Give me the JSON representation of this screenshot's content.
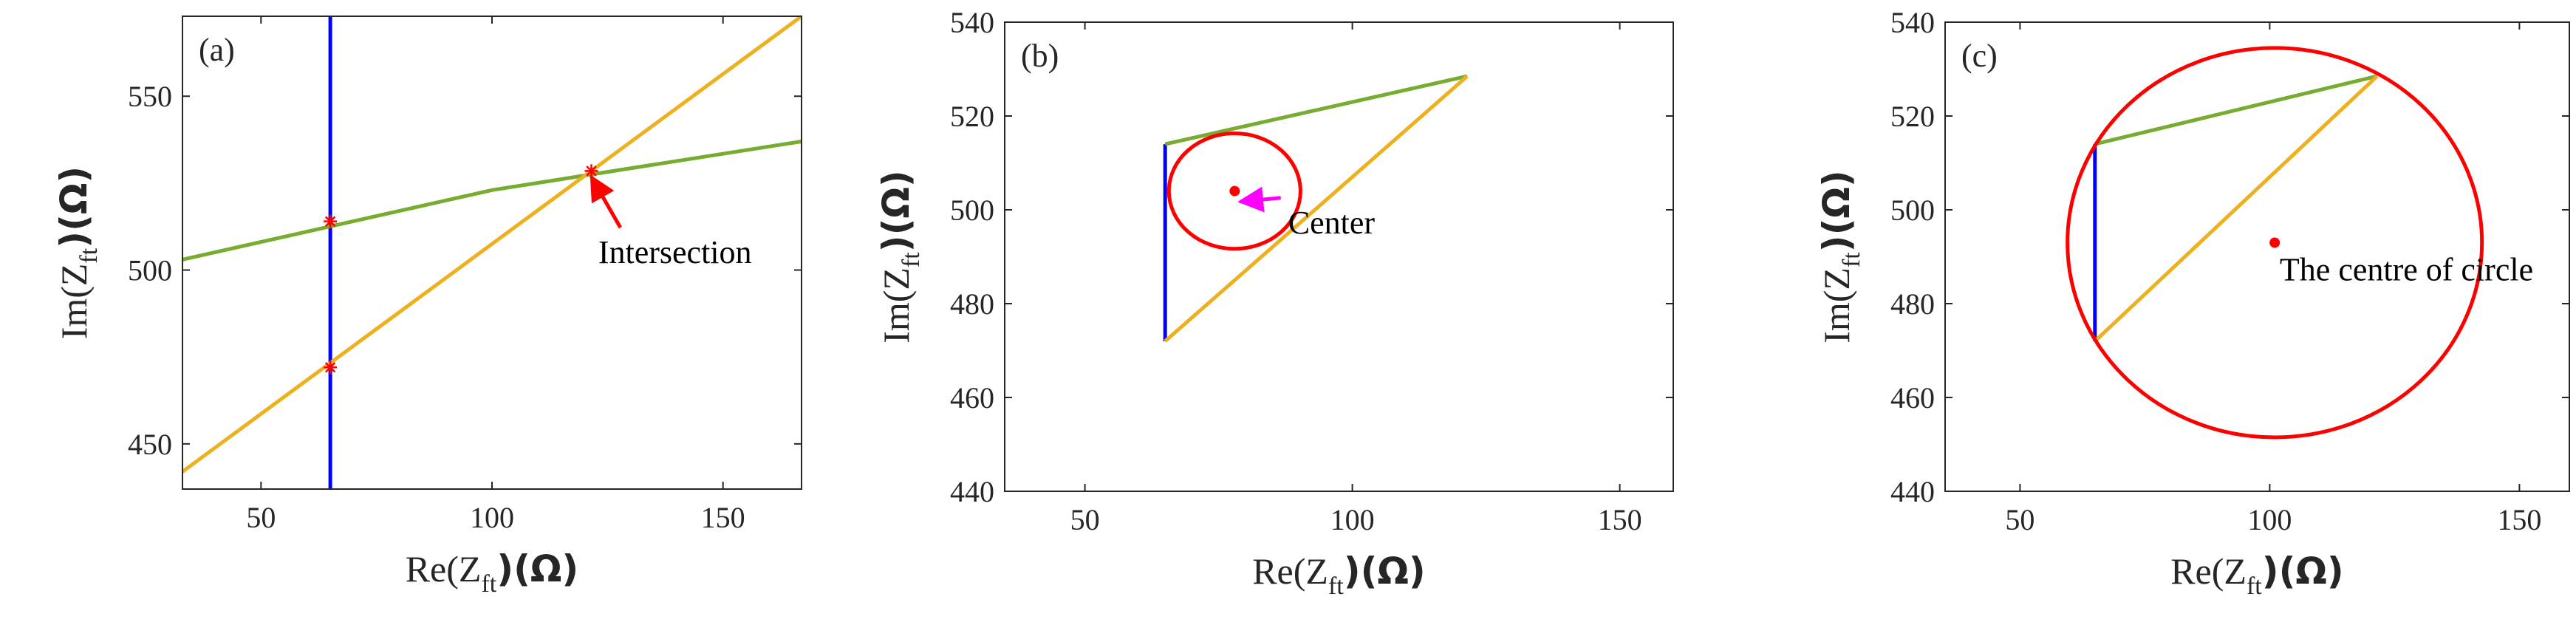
{
  "colors": {
    "blue": "#0000ff",
    "green": "#77ac30",
    "orange": "#edb120",
    "red": "#ff0000",
    "magenta": "#ff00ff",
    "axis": "#262626"
  },
  "chart_data": [
    {
      "type": "line",
      "panel_label": "(a)",
      "xlabel": {
        "base": "Re(Z",
        "sub": "ft",
        "tail": ")(Ω)"
      },
      "ylabel": {
        "base": "Im(Z",
        "sub": "ft",
        "tail": ")(Ω)"
      },
      "xlim": [
        33,
        167
      ],
      "ylim": [
        437,
        573
      ],
      "xticks": [
        50,
        100,
        150
      ],
      "yticks": [
        450,
        500,
        550
      ],
      "series": [
        {
          "color": "blue",
          "x": [
            65,
            65
          ],
          "y": [
            437,
            573
          ]
        },
        {
          "color": "green",
          "x": [
            33,
            100,
            167
          ],
          "y": [
            503,
            523,
            537
          ]
        },
        {
          "color": "orange",
          "x": [
            33,
            167
          ],
          "y": [
            442,
            573
          ]
        }
      ],
      "markers": [
        {
          "x": 65,
          "y": 514
        },
        {
          "x": 65,
          "y": 472
        },
        {
          "x": 121.5,
          "y": 528.5
        }
      ],
      "annotations": [
        {
          "text": "Intersection",
          "x": 123,
          "y": 502,
          "arrow_to": [
            121.5,
            528.5
          ],
          "arrow_color": "red"
        }
      ]
    },
    {
      "type": "line",
      "panel_label": "(b)",
      "xlabel": {
        "base": "Re(Z",
        "sub": "ft",
        "tail": ")(Ω)"
      },
      "ylabel": {
        "base": "Im(Z",
        "sub": "ft",
        "tail": ")(Ω)"
      },
      "xlim": [
        35,
        160
      ],
      "ylim": [
        440,
        540
      ],
      "xticks": [
        50,
        100,
        150
      ],
      "yticks": [
        440,
        460,
        480,
        500,
        520,
        540
      ],
      "series": [
        {
          "color": "blue",
          "x": [
            65,
            65
          ],
          "y": [
            472,
            514
          ]
        },
        {
          "color": "green",
          "x": [
            65,
            121.5
          ],
          "y": [
            514,
            528.5
          ]
        },
        {
          "color": "orange",
          "x": [
            65,
            121.5
          ],
          "y": [
            472,
            528.5
          ]
        }
      ],
      "circle": {
        "cx": 78,
        "cy": 504,
        "r": 12.3,
        "color": "red"
      },
      "center_point": {
        "x": 78,
        "y": 504
      },
      "annotations": [
        {
          "text": "Center",
          "x": 88,
          "y": 495,
          "arrow_to": [
            79,
            503
          ],
          "arrow_color": "magenta"
        }
      ]
    },
    {
      "type": "line",
      "panel_label": "(c)",
      "xlabel": {
        "base": "Re(Z",
        "sub": "ft",
        "tail": ")(Ω)"
      },
      "ylabel": {
        "base": "Im(Z",
        "sub": "ft",
        "tail": ")(Ω)"
      },
      "xlim": [
        35,
        160
      ],
      "ylim": [
        440,
        540
      ],
      "xticks": [
        50,
        100,
        150
      ],
      "yticks": [
        440,
        460,
        480,
        500,
        520,
        540
      ],
      "series": [
        {
          "color": "blue",
          "x": [
            65,
            65
          ],
          "y": [
            472,
            514
          ]
        },
        {
          "color": "green",
          "x": [
            65,
            121.5
          ],
          "y": [
            514,
            528.5
          ]
        },
        {
          "color": "orange",
          "x": [
            65,
            121.5
          ],
          "y": [
            472,
            528.5
          ]
        }
      ],
      "circle": {
        "cx": 101,
        "cy": 493,
        "r": 41.5,
        "color": "red"
      },
      "center_point": {
        "x": 101,
        "y": 493
      },
      "annotations": [
        {
          "text": "The centre of circle",
          "x": 102,
          "y": 485
        }
      ]
    }
  ]
}
